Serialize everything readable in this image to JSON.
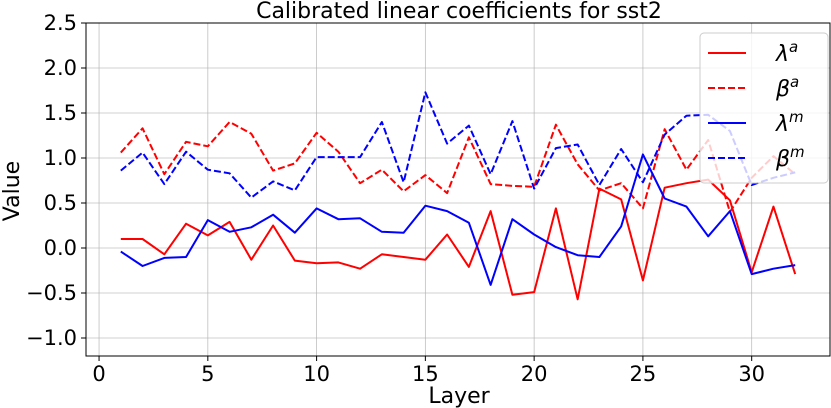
{
  "chart_data": {
    "type": "line",
    "title": "Calibrated linear coefficients for sst2",
    "xlabel": "Layer",
    "ylabel": "Value",
    "xlim": [
      -0.6,
      33.6
    ],
    "ylim": [
      -1.2,
      2.5
    ],
    "xticks": [
      0,
      5,
      10,
      15,
      20,
      25,
      30
    ],
    "yticks": [
      -1.0,
      -0.5,
      0.0,
      0.5,
      1.0,
      1.5,
      2.0,
      2.5
    ],
    "ytick_labels": [
      "−1.0",
      "−0.5",
      "0.0",
      "0.5",
      "1.0",
      "1.5",
      "2.0",
      "2.5"
    ],
    "grid": true,
    "legend_position": "upper right",
    "x": [
      1,
      2,
      3,
      4,
      5,
      6,
      7,
      8,
      9,
      10,
      11,
      12,
      13,
      14,
      15,
      16,
      17,
      18,
      19,
      20,
      21,
      22,
      23,
      24,
      25,
      26,
      27,
      28,
      29,
      30,
      31,
      32
    ],
    "series": [
      {
        "name": "λ",
        "sup": "a",
        "color": "#ff0000",
        "style": "solid",
        "values": [
          0.1,
          0.1,
          -0.07,
          0.27,
          0.14,
          0.29,
          -0.13,
          0.25,
          -0.14,
          -0.17,
          -0.16,
          -0.23,
          -0.07,
          -0.1,
          -0.13,
          0.15,
          -0.21,
          0.41,
          -0.52,
          -0.49,
          0.44,
          -0.57,
          0.66,
          0.54,
          -0.36,
          0.67,
          0.72,
          0.76,
          0.53,
          -0.27,
          0.46,
          -0.29
        ]
      },
      {
        "name": "β",
        "sup": "a",
        "color": "#ff0000",
        "style": "dashed",
        "values": [
          1.06,
          1.33,
          0.82,
          1.18,
          1.13,
          1.4,
          1.27,
          0.86,
          0.94,
          1.28,
          1.07,
          0.72,
          0.87,
          0.63,
          0.81,
          0.61,
          1.23,
          0.71,
          0.69,
          0.68,
          1.37,
          0.93,
          0.64,
          0.72,
          0.44,
          1.32,
          0.87,
          1.2,
          0.4,
          0.78,
          1.02,
          0.82
        ]
      },
      {
        "name": "λ",
        "sup": "m",
        "color": "#0000ff",
        "style": "solid",
        "values": [
          -0.04,
          -0.2,
          -0.11,
          -0.1,
          0.31,
          0.18,
          0.23,
          0.37,
          0.17,
          0.44,
          0.32,
          0.33,
          0.18,
          0.17,
          0.47,
          0.41,
          0.28,
          -0.41,
          0.32,
          0.15,
          0.01,
          -0.08,
          -0.1,
          0.24,
          1.04,
          0.55,
          0.46,
          0.13,
          0.41,
          -0.29,
          -0.23,
          -0.19
        ]
      },
      {
        "name": "β",
        "sup": "m",
        "color": "#0000ff",
        "style": "dashed",
        "values": [
          0.86,
          1.06,
          0.71,
          1.07,
          0.87,
          0.83,
          0.56,
          0.74,
          0.64,
          1.01,
          1.01,
          1.01,
          1.4,
          0.73,
          1.73,
          1.16,
          1.36,
          0.82,
          1.41,
          0.66,
          1.11,
          1.15,
          0.7,
          1.1,
          0.73,
          1.26,
          1.47,
          1.48,
          1.3,
          0.7,
          0.78,
          0.84
        ]
      }
    ]
  }
}
